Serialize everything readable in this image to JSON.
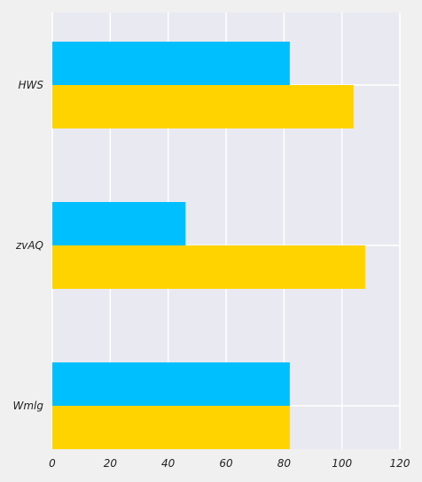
{
  "chart_data": {
    "type": "bar",
    "orientation": "horizontal",
    "title": "",
    "xlabel": "",
    "ylabel": "",
    "categories": [
      "HWS",
      "zvAQ",
      "Wmlg"
    ],
    "series": [
      {
        "values": [
          82,
          46,
          82
        ],
        "color": "#00bfff"
      },
      {
        "values": [
          104,
          108,
          82
        ],
        "color": "#ffd300"
      }
    ],
    "xlim": [
      0,
      120
    ],
    "xticks": [
      "0",
      "20",
      "40",
      "60",
      "80",
      "100",
      "120"
    ],
    "grid": true,
    "legend": "none"
  },
  "colors": {
    "background": "#f0f0f0",
    "plot_background": "#e9e9f1",
    "grid": "#ffffff"
  }
}
